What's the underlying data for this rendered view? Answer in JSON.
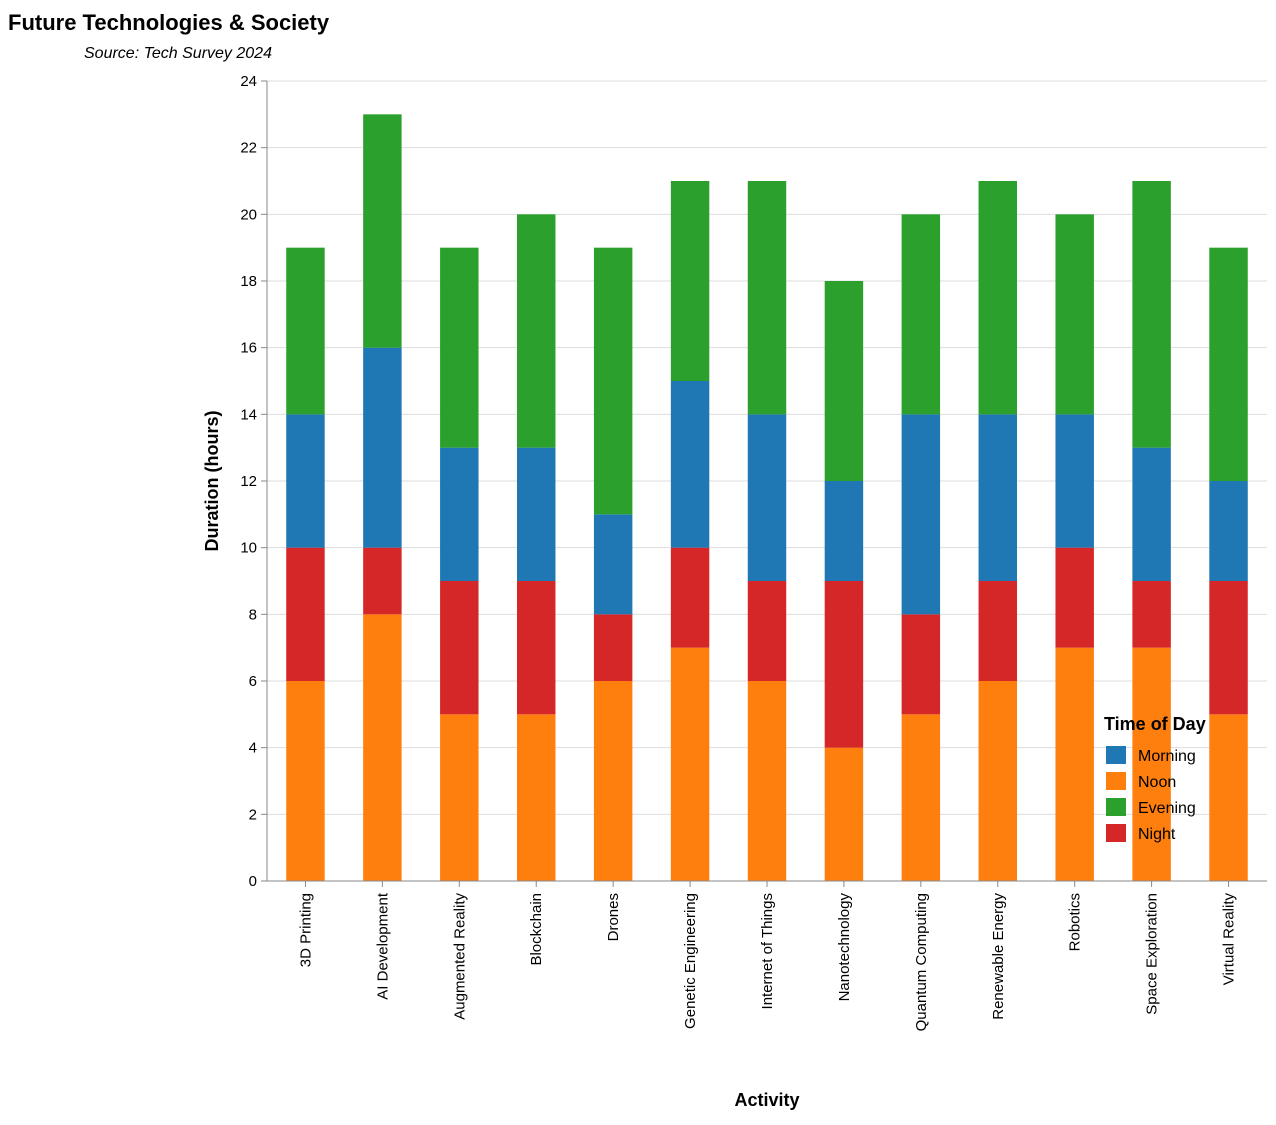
{
  "chart_data": {
    "type": "bar",
    "stacked": true,
    "title": "Future Technologies & Society",
    "subtitle": "Source: Tech Survey 2024",
    "xlabel": "Activity",
    "ylabel": "Duration (hours)",
    "ylim": [
      0,
      24
    ],
    "yticks": [
      0,
      2,
      4,
      6,
      8,
      10,
      12,
      14,
      16,
      18,
      20,
      22,
      24
    ],
    "grid": true,
    "legend": {
      "title": "Time of Day",
      "position": "bottom-right",
      "entries": [
        "Morning",
        "Noon",
        "Evening",
        "Night"
      ]
    },
    "categories": [
      "3D Printing",
      "AI Development",
      "Augmented Reality",
      "Blockchain",
      "Drones",
      "Genetic Engineering",
      "Internet of Things",
      "Nanotechnology",
      "Quantum Computing",
      "Renewable Energy",
      "Robotics",
      "Space Exploration",
      "Virtual Reality"
    ],
    "stack_order": [
      "Noon",
      "Night",
      "Morning",
      "Evening"
    ],
    "series": [
      {
        "name": "Morning",
        "color": "#1f77b4",
        "values": [
          4,
          6,
          4,
          4,
          3,
          5,
          5,
          3,
          6,
          5,
          4,
          4,
          3
        ]
      },
      {
        "name": "Noon",
        "color": "#ff7f0e",
        "values": [
          6,
          8,
          5,
          5,
          6,
          7,
          6,
          4,
          5,
          6,
          7,
          7,
          5
        ]
      },
      {
        "name": "Evening",
        "color": "#2ca02c",
        "values": [
          5,
          7,
          6,
          7,
          8,
          6,
          7,
          6,
          6,
          7,
          6,
          8,
          7
        ]
      },
      {
        "name": "Night",
        "color": "#d62728",
        "values": [
          4,
          2,
          4,
          4,
          2,
          3,
          3,
          5,
          3,
          3,
          3,
          2,
          4
        ]
      }
    ]
  }
}
